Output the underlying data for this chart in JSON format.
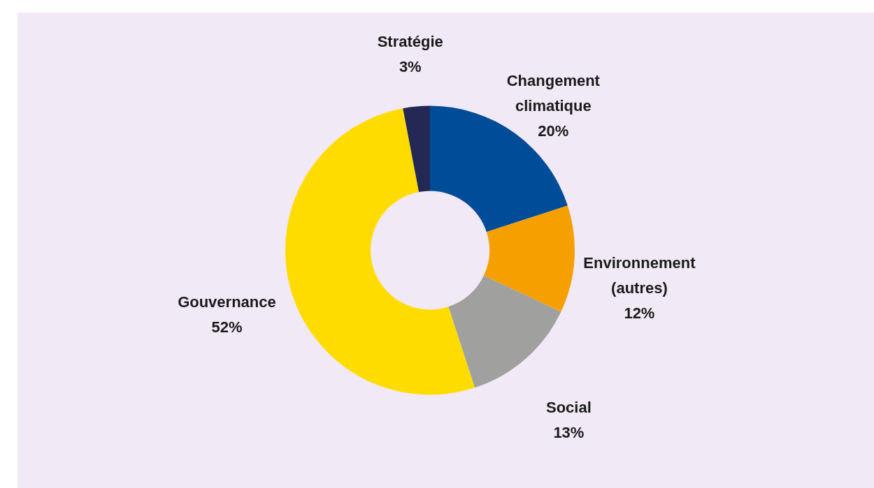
{
  "chart_data": {
    "type": "donut",
    "categories": [
      "Changement climatique",
      "Environnement (autres)",
      "Social",
      "Gouvernance",
      "Stratégie"
    ],
    "values": [
      20,
      12,
      13,
      52,
      3
    ],
    "value_labels": [
      "20%",
      "12%",
      "13%",
      "52%",
      "3%"
    ],
    "colors": [
      "#004c99",
      "#f5a000",
      "#a0a09f",
      "#ffdc00",
      "#232854"
    ]
  }
}
